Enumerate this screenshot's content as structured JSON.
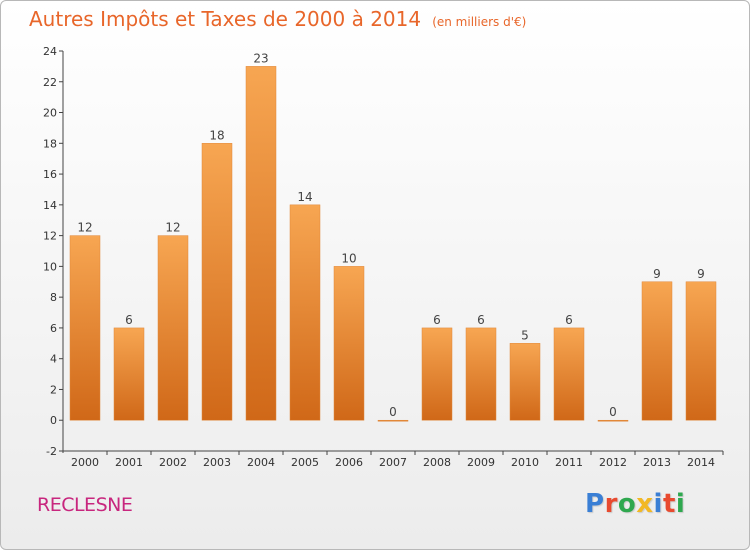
{
  "colors": {
    "title": "#e8662a",
    "place": "#c8267e",
    "bar_light": "#f7a652",
    "bar_dark": "#d06818",
    "axis": "#444444",
    "grid": "#dddddd",
    "logo": [
      "#3a7fd5",
      "#e84a2f",
      "#2fa84f",
      "#f2b824",
      "#3a7fd5",
      "#e84a2f",
      "#2fa84f"
    ]
  },
  "place_name": "RECLESNE",
  "logo_text": "Proxiti",
  "chart_data": {
    "type": "bar",
    "title": "Autres Impôts et Taxes de 2000 à 2014",
    "subtitle": "(en milliers d'€)",
    "xlabel": "",
    "ylabel": "",
    "categories": [
      "2000",
      "2001",
      "2002",
      "2003",
      "2004",
      "2005",
      "2006",
      "2007",
      "2008",
      "2009",
      "2010",
      "2011",
      "2012",
      "2013",
      "2014"
    ],
    "values": [
      12,
      6,
      12,
      18,
      23,
      14,
      10,
      0,
      6,
      6,
      5,
      6,
      0,
      9,
      9
    ],
    "ylim": [
      -2,
      24
    ],
    "yticks": [
      -2,
      0,
      2,
      4,
      6,
      8,
      10,
      12,
      14,
      16,
      18,
      20,
      22,
      24
    ],
    "grid": false,
    "legend": "none"
  }
}
